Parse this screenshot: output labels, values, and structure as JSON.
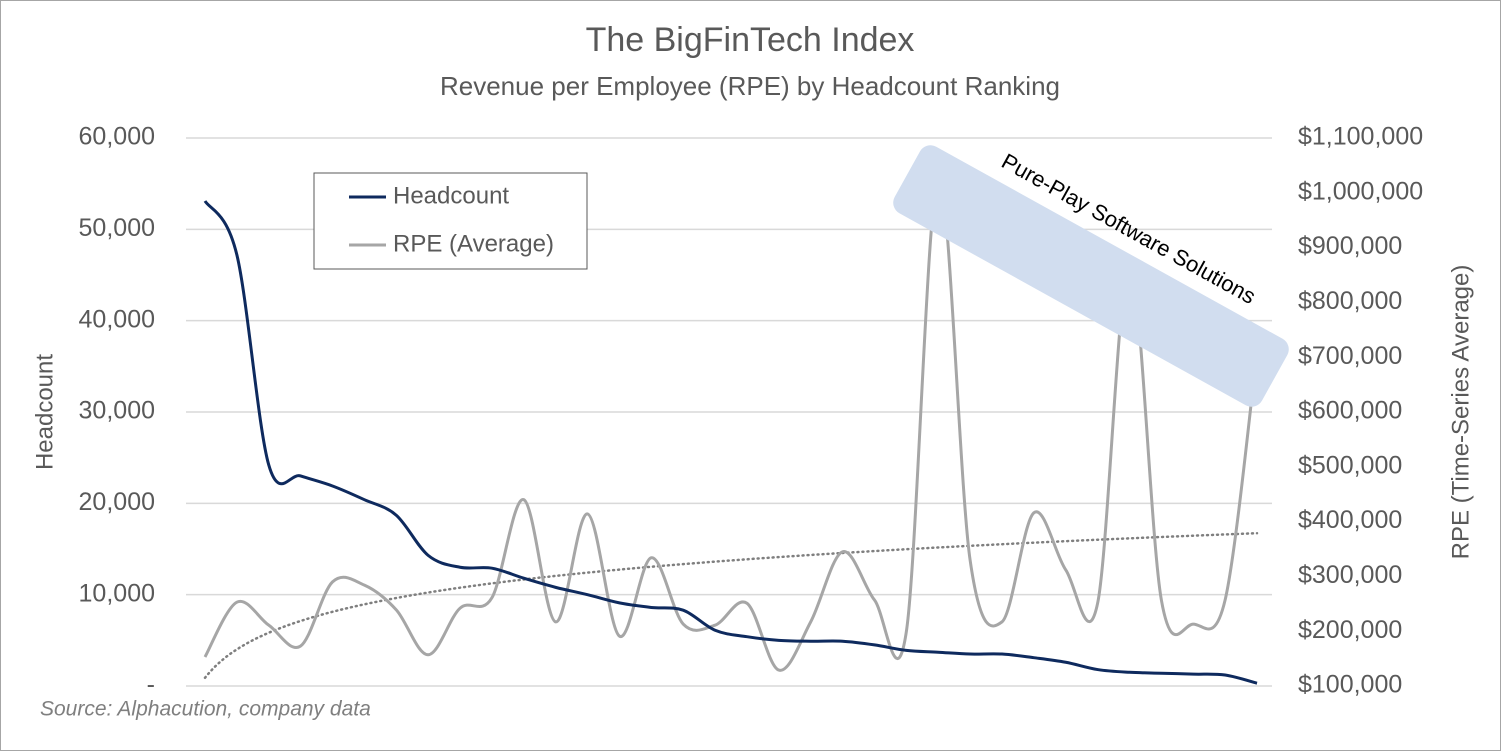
{
  "chart_data": {
    "type": "line",
    "title": "The BigFinTech Index",
    "subtitle": "Revenue per Employee (RPE) by Headcount Ranking",
    "y_label": "Headcount",
    "y2_label": "RPE (Time-Series Average)",
    "source": "Source: Alphacution, company data",
    "annotation": "Pure-Play Software Solutions",
    "categories": [
      null,
      null,
      null,
      null,
      null,
      null,
      null,
      null,
      null,
      null,
      null,
      null,
      null,
      null,
      null,
      null,
      null,
      null,
      null,
      null,
      null,
      null,
      null,
      null,
      null,
      null,
      null,
      null,
      null,
      null,
      null,
      null,
      null,
      null
    ],
    "series": [
      {
        "name": "Headcount",
        "color": "#0e2a5e",
        "axis": "y",
        "values": [
          53100,
          47200,
          24200,
          23000,
          21900,
          20400,
          18700,
          14300,
          13000,
          12900,
          11800,
          10800,
          10000,
          9100,
          8600,
          8300,
          6100,
          5400,
          5000,
          4900,
          4900,
          4500,
          3900,
          3700,
          3500,
          3500,
          3100,
          2600,
          1800,
          1500,
          1400,
          1300,
          1200,
          300
        ]
      },
      {
        "name": "RPE (Average)",
        "color": "#a6a6a6",
        "axis": "y2",
        "trendline": "log",
        "values": [
          153000,
          253000,
          211000,
          173000,
          290000,
          284000,
          239000,
          157000,
          242000,
          261000,
          440000,
          217000,
          414000,
          191000,
          334000,
          213000,
          211000,
          251000,
          129000,
          217000,
          345000,
          257000,
          199000,
          1027000,
          330000,
          217000,
          416000,
          312000,
          251000,
          868000,
          257000,
          213000,
          257000,
          708000
        ]
      }
    ],
    "ylim": [
      0,
      60000
    ],
    "yticks": [
      {
        "value": 0,
        "label": "-"
      },
      {
        "value": 10000,
        "label": "10,000"
      },
      {
        "value": 20000,
        "label": "20,000"
      },
      {
        "value": 30000,
        "label": "30,000"
      },
      {
        "value": 40000,
        "label": "40,000"
      },
      {
        "value": 50000,
        "label": "50,000"
      },
      {
        "value": 60000,
        "label": "60,000"
      }
    ],
    "y2lim": [
      100000,
      1100000
    ],
    "y2ticks": [
      {
        "value": 100000,
        "label": "$100,000"
      },
      {
        "value": 200000,
        "label": "$200,000"
      },
      {
        "value": 300000,
        "label": "$300,000"
      },
      {
        "value": 400000,
        "label": "$400,000"
      },
      {
        "value": 500000,
        "label": "$500,000"
      },
      {
        "value": 600000,
        "label": "$600,000"
      },
      {
        "value": 700000,
        "label": "$700,000"
      },
      {
        "value": 800000,
        "label": "$800,000"
      },
      {
        "value": 900000,
        "label": "$900,000"
      },
      {
        "value": 1000000,
        "label": "$1,000,000"
      },
      {
        "value": 1100000,
        "label": "$1,100,000"
      }
    ],
    "grid": true,
    "legend": "top-left"
  }
}
